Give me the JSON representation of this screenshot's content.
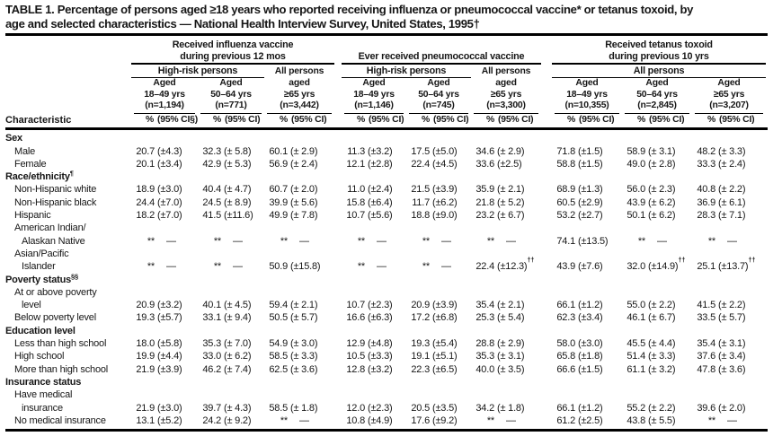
{
  "title": {
    "line1": "TABLE 1. Percentage of persons aged ≥18 years who reported receiving influenza or pneumococcal vaccine* or tetanus toxoid, by",
    "line2": "age and selected characteristics — National Health Interview Survey, United States, 1995†"
  },
  "header": {
    "characteristic": "Characteristic",
    "groups": [
      {
        "title": [
          "Received influenza vaccine",
          "during previous 12 mos"
        ],
        "sub": "High-risk persons",
        "cols": [
          {
            "lines": [
              "Aged",
              "18–49 yrs",
              "(n=1,194)"
            ],
            "pct": "%",
            "ci": "(95% CI§)"
          },
          {
            "lines": [
              "Aged",
              "50–64 yrs",
              "(n=771)"
            ],
            "pct": "%",
            "ci": "(95% CI)"
          }
        ],
        "all": {
          "lines": [
            "All persons",
            "aged",
            "≥65 yrs",
            "(n=3,442)"
          ],
          "pct": "%",
          "ci": "(95% CI)"
        }
      },
      {
        "title": [
          "Ever received pneumococcal vaccine"
        ],
        "sub": "High-risk persons",
        "cols": [
          {
            "lines": [
              "Aged",
              "18–49 yrs",
              "(n=1,146)"
            ],
            "pct": "%",
            "ci": "(95% CI)"
          },
          {
            "lines": [
              "Aged",
              "50–64 yrs",
              "(n=745)"
            ],
            "pct": "%",
            "ci": "(95% CI)"
          }
        ],
        "all": {
          "lines": [
            "All persons",
            "aged",
            "≥65 yrs",
            "(n=3,300)"
          ],
          "pct": "%",
          "ci": "(95% CI)"
        }
      },
      {
        "title": [
          "Received tetanus toxoid",
          "during previous 10 yrs"
        ],
        "sub": "All persons",
        "cols": [
          {
            "lines": [
              "Aged",
              "18–49 yrs",
              "(n=10,355)"
            ],
            "pct": "%",
            "ci": "(95% CI)"
          },
          {
            "lines": [
              "Aged",
              "50–64 yrs",
              "(n=2,845)"
            ],
            "pct": "%",
            "ci": "(95% CI)"
          },
          {
            "lines": [
              "Aged",
              "≥65 yrs",
              "(n=3,207)"
            ],
            "pct": "%",
            "ci": "(95% CI)"
          }
        ]
      }
    ]
  },
  "rows": [
    {
      "type": "section",
      "label": "Sex"
    },
    {
      "type": "data",
      "label": "Male",
      "cells": [
        [
          "20.7",
          "(±4.3)"
        ],
        [
          "32.3",
          "(± 5.8)"
        ],
        [
          "60.1",
          "(± 2.9)"
        ],
        [
          "11.3",
          "(±3.2)"
        ],
        [
          "17.5",
          "(±5.0)"
        ],
        [
          "34.6",
          "(± 2.9)"
        ],
        [
          "71.8",
          "(±1.5)"
        ],
        [
          "58.9",
          "(± 3.1)"
        ],
        [
          "48.2",
          "(± 3.3)"
        ]
      ]
    },
    {
      "type": "data",
      "label": "Female",
      "cells": [
        [
          "20.1",
          "(±3.4)"
        ],
        [
          "42.9",
          "(± 5.3)"
        ],
        [
          "56.9",
          "(± 2.4)"
        ],
        [
          "12.1",
          "(±2.8)"
        ],
        [
          "22.4",
          "(±4.5)"
        ],
        [
          "33.6",
          "(±2.5)"
        ],
        [
          "58.8",
          "(±1.5)"
        ],
        [
          "49.0",
          "(± 2.8)"
        ],
        [
          "33.3",
          "(± 2.4)"
        ]
      ]
    },
    {
      "type": "section",
      "label": "Race/ethnicity",
      "sup": "¶"
    },
    {
      "type": "data",
      "label": "Non-Hispanic white",
      "cells": [
        [
          "18.9",
          "(±3.0)"
        ],
        [
          "40.4",
          "(± 4.7)"
        ],
        [
          "60.7",
          "(± 2.0)"
        ],
        [
          "11.0",
          "(±2.4)"
        ],
        [
          "21.5",
          "(±3.9)"
        ],
        [
          "35.9",
          "(± 2.1)"
        ],
        [
          "68.9",
          "(±1.3)"
        ],
        [
          "56.0",
          "(± 2.3)"
        ],
        [
          "40.8",
          "(± 2.2)"
        ]
      ]
    },
    {
      "type": "data",
      "label": "Non-Hispanic black",
      "cells": [
        [
          "24.4",
          "(±7.0)"
        ],
        [
          "24.5",
          "(± 8.9)"
        ],
        [
          "39.9",
          "(± 5.6)"
        ],
        [
          "15.8",
          "(±6.4)"
        ],
        [
          "11.7",
          "(±6.2)"
        ],
        [
          "21.8",
          "(± 5.2)"
        ],
        [
          "60.5",
          "(±2.9)"
        ],
        [
          "43.9",
          "(± 6.2)"
        ],
        [
          "36.9",
          "(± 6.1)"
        ]
      ]
    },
    {
      "type": "data",
      "label": "Hispanic",
      "cells": [
        [
          "18.2",
          "(±7.0)"
        ],
        [
          "41.5",
          "(±11.6)"
        ],
        [
          "49.9",
          "(± 7.8)"
        ],
        [
          "10.7",
          "(±5.6)"
        ],
        [
          "18.8",
          "(±9.0)"
        ],
        [
          "23.2",
          "(± 6.7)"
        ],
        [
          "53.2",
          "(±2.7)"
        ],
        [
          "50.1",
          "(± 6.2)"
        ],
        [
          "28.3",
          "(± 7.1)"
        ]
      ]
    },
    {
      "type": "data",
      "label": "American Indian/",
      "label2": "Alaskan Native",
      "cells": [
        [
          "**",
          "—"
        ],
        [
          "**",
          "—"
        ],
        [
          "**",
          "—"
        ],
        [
          "**",
          "—"
        ],
        [
          "**",
          "—"
        ],
        [
          "**",
          "—"
        ],
        [
          "74.1",
          "(±13.5)"
        ],
        [
          "**",
          "—"
        ],
        [
          "**",
          "—"
        ]
      ]
    },
    {
      "type": "data",
      "label": "Asian/Pacific",
      "label2": "Islander",
      "cells": [
        [
          "**",
          "—"
        ],
        [
          "**",
          "—"
        ],
        [
          "50.9",
          "(±15.8)"
        ],
        [
          "**",
          "—"
        ],
        [
          "**",
          "—"
        ],
        [
          "22.4",
          "(±12.3)",
          "††"
        ],
        [
          "43.9",
          "(±7.6)"
        ],
        [
          "32.0",
          "(±14.9)",
          "††"
        ],
        [
          "25.1",
          "(±13.7)",
          "††"
        ]
      ]
    },
    {
      "type": "section",
      "label": "Poverty status",
      "sup": "§§"
    },
    {
      "type": "data",
      "label": "At or above poverty",
      "label2": "level",
      "cells": [
        [
          "20.9",
          "(±3.2)"
        ],
        [
          "40.1",
          "(± 4.5)"
        ],
        [
          "59.4",
          "(± 2.1)"
        ],
        [
          "10.7",
          "(±2.3)"
        ],
        [
          "20.9",
          "(±3.9)"
        ],
        [
          "35.4",
          "(± 2.1)"
        ],
        [
          "66.1",
          "(±1.2)"
        ],
        [
          "55.0",
          "(± 2.2)"
        ],
        [
          "41.5",
          "(± 2.2)"
        ]
      ]
    },
    {
      "type": "data",
      "label": "Below poverty level",
      "cells": [
        [
          "19.3",
          "(±5.7)"
        ],
        [
          "33.1",
          "(± 9.4)"
        ],
        [
          "50.5",
          "(± 5.7)"
        ],
        [
          "16.6",
          "(±6.3)"
        ],
        [
          "17.2",
          "(±6.8)"
        ],
        [
          "25.3",
          "(± 5.4)"
        ],
        [
          "62.3",
          "(±3.4)"
        ],
        [
          "46.1",
          "(± 6.7)"
        ],
        [
          "33.5",
          "(± 5.7)"
        ]
      ]
    },
    {
      "type": "section",
      "label": "Education level"
    },
    {
      "type": "data",
      "label": "Less than high school",
      "cells": [
        [
          "18.0",
          "(±5.8)"
        ],
        [
          "35.3",
          "(± 7.0)"
        ],
        [
          "54.9",
          "(± 3.0)"
        ],
        [
          "12.9",
          "(±4.8)"
        ],
        [
          "19.3",
          "(±5.4)"
        ],
        [
          "28.8",
          "(± 2.9)"
        ],
        [
          "58.0",
          "(±3.0)"
        ],
        [
          "45.5",
          "(± 4.4)"
        ],
        [
          "35.4",
          "(± 3.1)"
        ]
      ]
    },
    {
      "type": "data",
      "label": "High school",
      "cells": [
        [
          "19.9",
          "(±4.4)"
        ],
        [
          "33.0",
          "(± 6.2)"
        ],
        [
          "58.5",
          "(± 3.3)"
        ],
        [
          "10.5",
          "(±3.3)"
        ],
        [
          "19.1",
          "(±5.1)"
        ],
        [
          "35.3",
          "(± 3.1)"
        ],
        [
          "65.8",
          "(±1.8)"
        ],
        [
          "51.4",
          "(± 3.3)"
        ],
        [
          "37.6",
          "(± 3.4)"
        ]
      ]
    },
    {
      "type": "data",
      "label": "More than high school",
      "cells": [
        [
          "21.9",
          "(±3.9)"
        ],
        [
          "46.2",
          "(± 7.4)"
        ],
        [
          "62.5",
          "(± 3.6)"
        ],
        [
          "12.8",
          "(±3.2)"
        ],
        [
          "22.3",
          "(±6.5)"
        ],
        [
          "40.0",
          "(± 3.5)"
        ],
        [
          "66.6",
          "(±1.5)"
        ],
        [
          "61.1",
          "(± 3.2)"
        ],
        [
          "47.8",
          "(± 3.6)"
        ]
      ]
    },
    {
      "type": "section",
      "label": "Insurance status"
    },
    {
      "type": "data",
      "label": "Have medical",
      "label2": "insurance",
      "cells": [
        [
          "21.9",
          "(±3.0)"
        ],
        [
          "39.7",
          "(± 4.3)"
        ],
        [
          "58.5",
          "(± 1.8)"
        ],
        [
          "12.0",
          "(±2.3)"
        ],
        [
          "20.5",
          "(±3.5)"
        ],
        [
          "34.2",
          "(± 1.8)"
        ],
        [
          "66.1",
          "(±1.2)"
        ],
        [
          "55.2",
          "(± 2.2)"
        ],
        [
          "39.6",
          "(± 2.0)"
        ]
      ]
    },
    {
      "type": "data",
      "label": "No medical insurance",
      "cells": [
        [
          "13.1",
          "(±5.2)"
        ],
        [
          "24.2",
          "(± 9.2)"
        ],
        [
          "**",
          "—"
        ],
        [
          "10.8",
          "(±4.9)"
        ],
        [
          "17.6",
          "(±9.2)"
        ],
        [
          "**",
          "—"
        ],
        [
          "61.2",
          "(±2.5)"
        ],
        [
          "43.8",
          "(± 5.5)"
        ],
        [
          "**",
          "—"
        ]
      ]
    }
  ]
}
